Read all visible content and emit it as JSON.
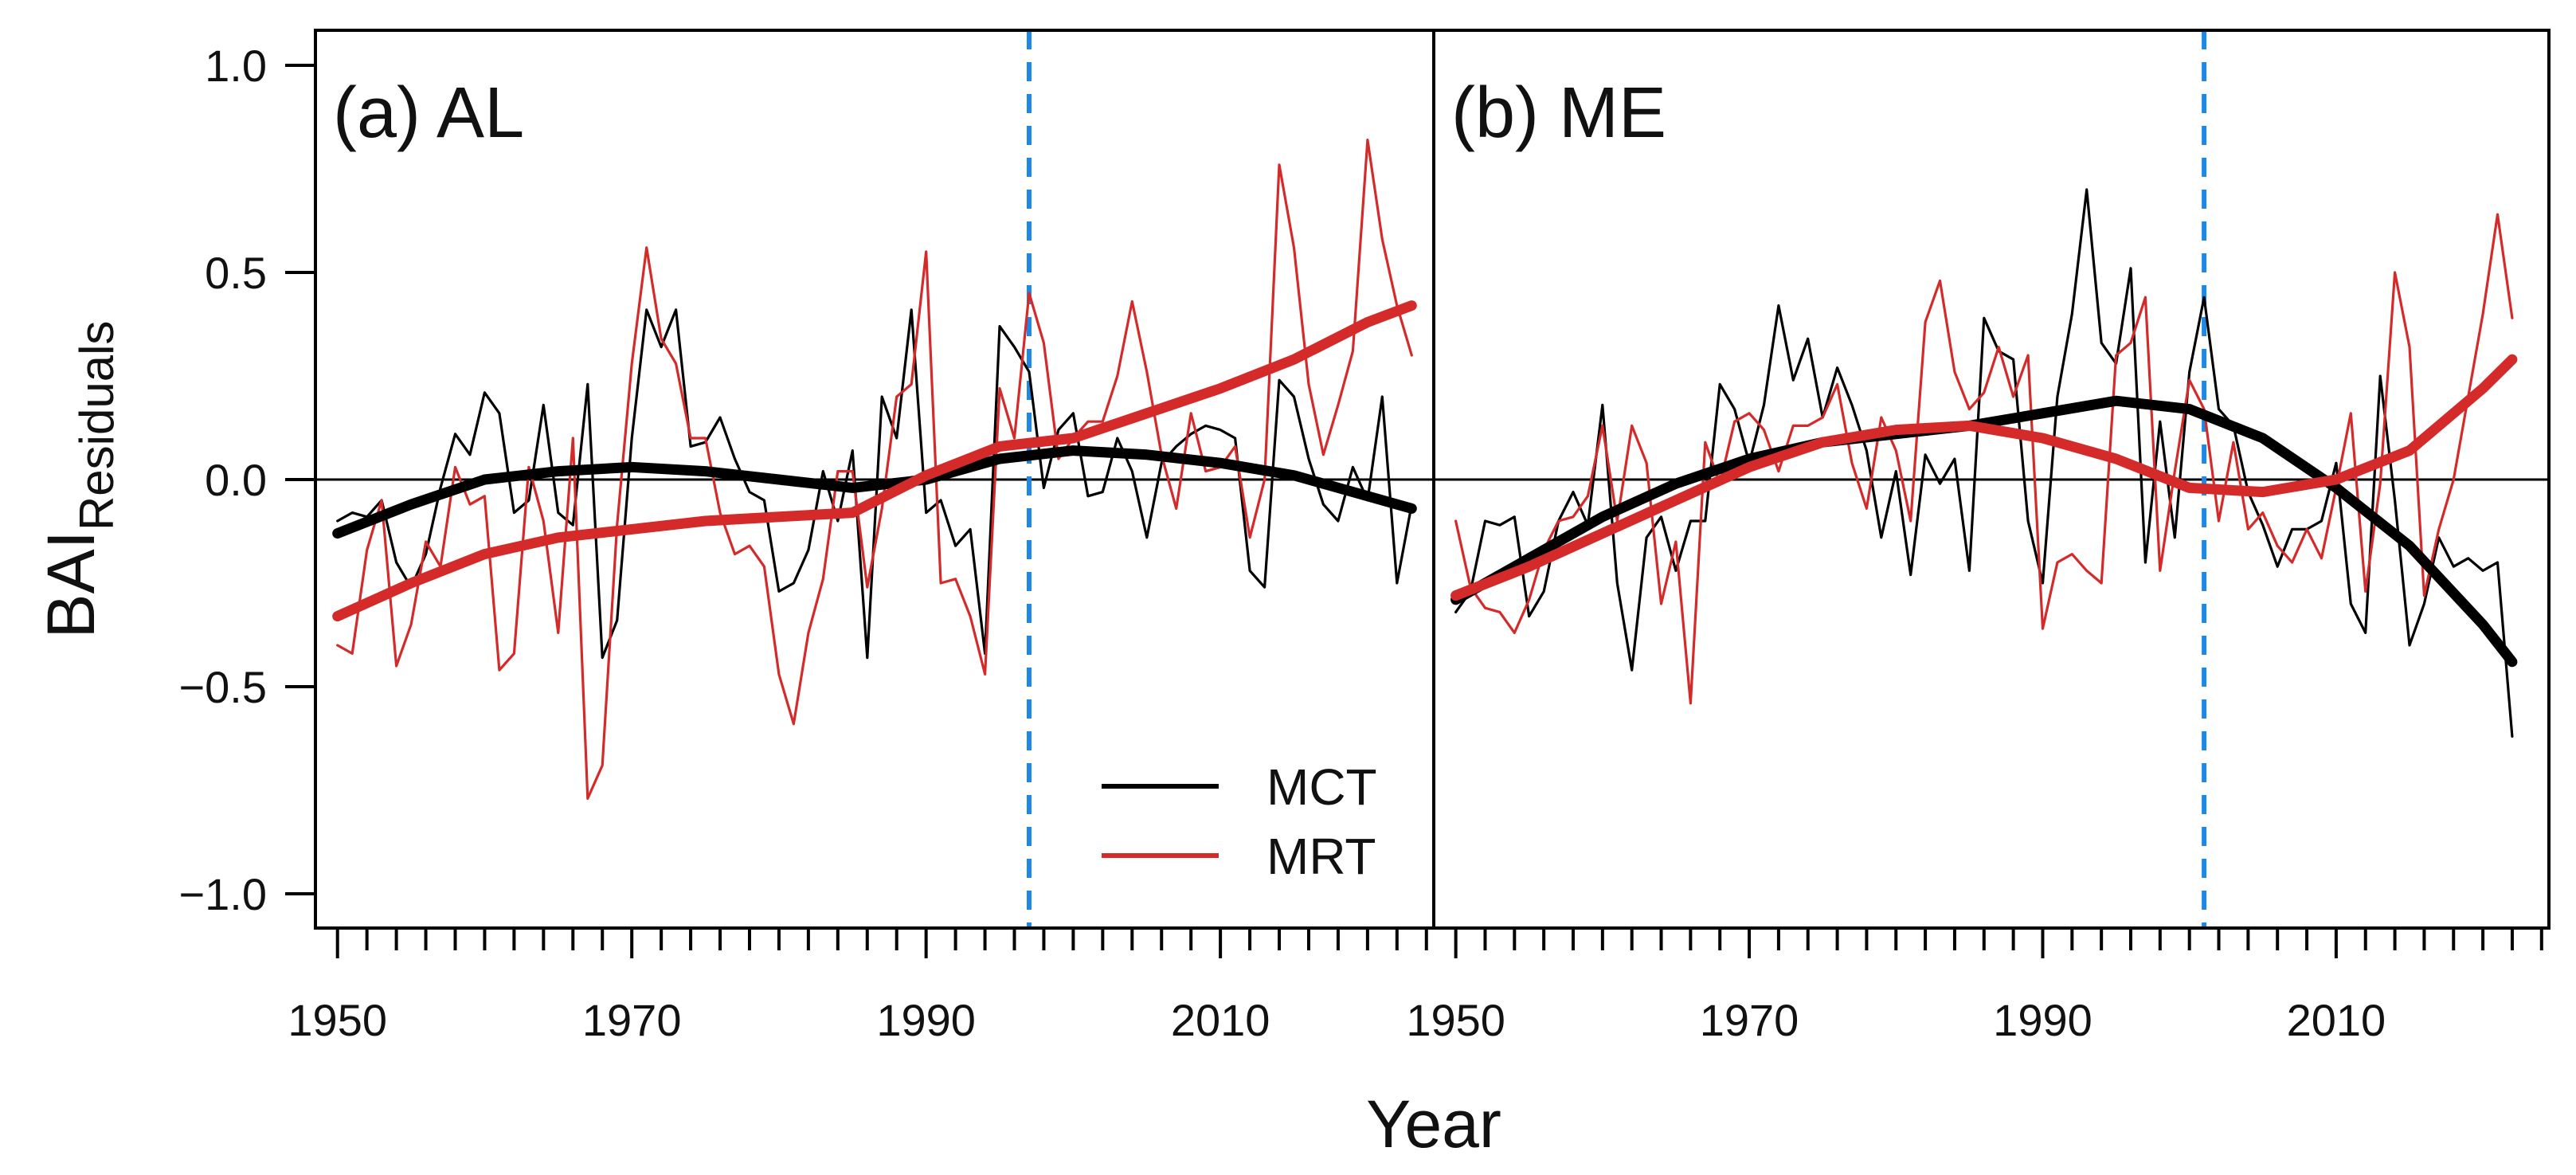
{
  "chart_data": [
    {
      "type": "line",
      "panel_title": "(a) AL",
      "xlabel": "Year",
      "ylabel": "BAI",
      "ylabel_subscript": "Residuals",
      "xlim": [
        1948.5,
        2024.5
      ],
      "ylim": [
        -1.07,
        1.07
      ],
      "x_ticks": [
        1950,
        1970,
        1990,
        2010
      ],
      "x_tick_labels": [
        "1950",
        "1970",
        "1990",
        "2010"
      ],
      "y_ticks": [
        1.0,
        0.5,
        0.0,
        -0.5,
        -1.0
      ],
      "y_tick_labels": [
        "1.0",
        "0.5",
        "0.0",
        "−0.5",
        "−1.0"
      ],
      "reference_year": 1997,
      "zero_line": true,
      "legend": [
        {
          "label": "MCT",
          "color": "#000000"
        },
        {
          "label": "MRT",
          "color": "#d42a2a"
        }
      ],
      "legend_position": "bottom-right",
      "series": [
        {
          "name": "MCT",
          "kind": "raw",
          "color": "#000000",
          "x": [
            1950,
            1951,
            1952,
            1953,
            1954,
            1955,
            1956,
            1957,
            1958,
            1959,
            1960,
            1961,
            1962,
            1963,
            1964,
            1965,
            1966,
            1967,
            1968,
            1969,
            1970,
            1971,
            1972,
            1973,
            1974,
            1975,
            1976,
            1977,
            1978,
            1979,
            1980,
            1981,
            1982,
            1983,
            1984,
            1985,
            1986,
            1987,
            1988,
            1989,
            1990,
            1991,
            1992,
            1993,
            1994,
            1995,
            1996,
            1997,
            1998,
            1999,
            2000,
            2001,
            2002,
            2003,
            2004,
            2005,
            2006,
            2007,
            2008,
            2009,
            2010,
            2011,
            2012,
            2013,
            2014,
            2015,
            2016,
            2017,
            2018,
            2019,
            2020,
            2021,
            2022,
            2023
          ],
          "values": [
            -0.1,
            -0.08,
            -0.09,
            -0.05,
            -0.2,
            -0.26,
            -0.18,
            -0.02,
            0.11,
            0.06,
            0.21,
            0.16,
            -0.08,
            -0.05,
            0.18,
            -0.08,
            -0.11,
            0.23,
            -0.43,
            -0.34,
            0.1,
            0.41,
            0.32,
            0.41,
            0.08,
            0.09,
            0.15,
            0.05,
            -0.03,
            -0.05,
            -0.27,
            -0.25,
            -0.17,
            0.02,
            -0.1,
            0.07,
            -0.43,
            0.2,
            0.1,
            0.41,
            -0.08,
            -0.05,
            -0.16,
            -0.12,
            -0.42,
            0.37,
            0.32,
            0.26,
            -0.02,
            0.12,
            0.16,
            -0.04,
            -0.03,
            0.1,
            0.02,
            -0.14,
            0.04,
            0.08,
            0.11,
            0.13,
            0.12,
            0.1,
            -0.22,
            -0.26,
            0.24,
            0.2,
            0.05,
            -0.06,
            -0.1,
            0.03,
            -0.05,
            0.2,
            -0.25,
            -0.06
          ]
        },
        {
          "name": "MRT",
          "kind": "raw",
          "color": "#d42a2a",
          "x": [
            1950,
            1951,
            1952,
            1953,
            1954,
            1955,
            1956,
            1957,
            1958,
            1959,
            1960,
            1961,
            1962,
            1963,
            1964,
            1965,
            1966,
            1967,
            1968,
            1969,
            1970,
            1971,
            1972,
            1973,
            1974,
            1975,
            1976,
            1977,
            1978,
            1979,
            1980,
            1981,
            1982,
            1983,
            1984,
            1985,
            1986,
            1987,
            1988,
            1989,
            1990,
            1991,
            1992,
            1993,
            1994,
            1995,
            1996,
            1997,
            1998,
            1999,
            2000,
            2001,
            2002,
            2003,
            2004,
            2005,
            2006,
            2007,
            2008,
            2009,
            2010,
            2011,
            2012,
            2013,
            2014,
            2015,
            2016,
            2017,
            2018,
            2019,
            2020,
            2021,
            2022,
            2023
          ],
          "values": [
            -0.4,
            -0.42,
            -0.17,
            -0.05,
            -0.45,
            -0.35,
            -0.15,
            -0.21,
            0.03,
            -0.06,
            -0.04,
            -0.46,
            -0.42,
            0.03,
            -0.1,
            -0.37,
            0.1,
            -0.77,
            -0.69,
            -0.11,
            0.28,
            0.56,
            0.34,
            0.28,
            0.1,
            0.1,
            -0.08,
            -0.18,
            -0.16,
            -0.21,
            -0.47,
            -0.59,
            -0.37,
            -0.24,
            0.02,
            0.02,
            -0.26,
            -0.07,
            0.2,
            0.23,
            0.55,
            -0.25,
            -0.24,
            -0.33,
            -0.47,
            0.22,
            0.1,
            0.45,
            0.33,
            0.05,
            0.1,
            0.14,
            0.14,
            0.25,
            0.43,
            0.26,
            0.06,
            -0.07,
            0.16,
            0.02,
            0.03,
            0.08,
            -0.14,
            0.0,
            0.76,
            0.56,
            0.23,
            0.06,
            0.18,
            0.31,
            0.82,
            0.58,
            0.42,
            0.3
          ]
        },
        {
          "name": "MCT",
          "kind": "smooth",
          "color": "#000000",
          "x": [
            1950,
            1955,
            1960,
            1965,
            1970,
            1975,
            1980,
            1985,
            1990,
            1995,
            2000,
            2005,
            2010,
            2015,
            2020,
            2023
          ],
          "values": [
            -0.13,
            -0.06,
            0.0,
            0.02,
            0.03,
            0.02,
            0.0,
            -0.02,
            0.0,
            0.05,
            0.07,
            0.06,
            0.04,
            0.01,
            -0.04,
            -0.07
          ]
        },
        {
          "name": "MRT",
          "kind": "smooth",
          "color": "#d42a2a",
          "x": [
            1950,
            1955,
            1960,
            1965,
            1970,
            1975,
            1980,
            1985,
            1990,
            1995,
            2000,
            2005,
            2010,
            2015,
            2020,
            2023
          ],
          "values": [
            -0.33,
            -0.25,
            -0.18,
            -0.14,
            -0.12,
            -0.1,
            -0.09,
            -0.08,
            0.01,
            0.08,
            0.1,
            0.16,
            0.22,
            0.29,
            0.38,
            0.42
          ]
        }
      ]
    },
    {
      "type": "line",
      "panel_title": "(b) ME",
      "xlabel": "Year",
      "xlim": [
        1948.5,
        2024.5
      ],
      "ylim": [
        -1.07,
        1.07
      ],
      "x_ticks": [
        1950,
        1970,
        1990,
        2010
      ],
      "x_tick_labels": [
        "1950",
        "1970",
        "1990",
        "2010"
      ],
      "reference_year": 2001,
      "zero_line": true,
      "series": [
        {
          "name": "MCT",
          "kind": "raw",
          "color": "#000000",
          "x": [
            1950,
            1951,
            1952,
            1953,
            1954,
            1955,
            1956,
            1957,
            1958,
            1959,
            1960,
            1961,
            1962,
            1963,
            1964,
            1965,
            1966,
            1967,
            1968,
            1969,
            1970,
            1971,
            1972,
            1973,
            1974,
            1975,
            1976,
            1977,
            1978,
            1979,
            1980,
            1981,
            1982,
            1983,
            1984,
            1985,
            1986,
            1987,
            1988,
            1989,
            1990,
            1991,
            1992,
            1993,
            1994,
            1995,
            1996,
            1997,
            1998,
            1999,
            2000,
            2001,
            2002,
            2003,
            2004,
            2005,
            2006,
            2007,
            2008,
            2009,
            2010,
            2011,
            2012,
            2013,
            2014,
            2015,
            2016,
            2017,
            2018,
            2019,
            2020,
            2021,
            2022
          ],
          "values": [
            -0.32,
            -0.27,
            -0.1,
            -0.11,
            -0.09,
            -0.33,
            -0.27,
            -0.1,
            -0.03,
            -0.11,
            0.18,
            -0.25,
            -0.46,
            -0.14,
            -0.09,
            -0.22,
            -0.1,
            -0.1,
            0.23,
            0.17,
            0.04,
            0.18,
            0.42,
            0.24,
            0.34,
            0.15,
            0.27,
            0.18,
            0.07,
            -0.14,
            0.02,
            -0.23,
            0.06,
            -0.01,
            0.05,
            -0.22,
            0.39,
            0.31,
            0.29,
            -0.1,
            -0.25,
            0.2,
            0.4,
            0.7,
            0.33,
            0.28,
            0.51,
            -0.2,
            0.14,
            -0.14,
            0.26,
            0.44,
            0.17,
            0.13,
            -0.03,
            -0.11,
            -0.21,
            -0.12,
            -0.12,
            -0.1,
            0.04,
            -0.3,
            -0.37,
            0.25,
            -0.05,
            -0.4,
            -0.3,
            -0.14,
            -0.21,
            -0.19,
            -0.22,
            -0.2,
            -0.62
          ]
        },
        {
          "name": "MRT",
          "kind": "raw",
          "color": "#d42a2a",
          "x": [
            1950,
            1951,
            1952,
            1953,
            1954,
            1955,
            1956,
            1957,
            1958,
            1959,
            1960,
            1961,
            1962,
            1963,
            1964,
            1965,
            1966,
            1967,
            1968,
            1969,
            1970,
            1971,
            1972,
            1973,
            1974,
            1975,
            1976,
            1977,
            1978,
            1979,
            1980,
            1981,
            1982,
            1983,
            1984,
            1985,
            1986,
            1987,
            1988,
            1989,
            1990,
            1991,
            1992,
            1993,
            1994,
            1995,
            1996,
            1997,
            1998,
            1999,
            2000,
            2001,
            2002,
            2003,
            2004,
            2005,
            2006,
            2007,
            2008,
            2009,
            2010,
            2011,
            2012,
            2013,
            2014,
            2015,
            2016,
            2017,
            2018,
            2019,
            2020,
            2021,
            2022
          ],
          "values": [
            -0.1,
            -0.26,
            -0.31,
            -0.32,
            -0.37,
            -0.29,
            -0.17,
            -0.1,
            -0.09,
            -0.04,
            0.13,
            -0.1,
            0.13,
            0.04,
            -0.3,
            -0.15,
            -0.54,
            0.09,
            -0.01,
            0.14,
            0.16,
            0.12,
            0.02,
            0.13,
            0.13,
            0.15,
            0.23,
            0.04,
            -0.07,
            0.15,
            0.07,
            -0.1,
            0.38,
            0.48,
            0.26,
            0.17,
            0.21,
            0.32,
            0.2,
            0.3,
            -0.36,
            -0.2,
            -0.18,
            -0.22,
            -0.25,
            0.3,
            0.33,
            0.44,
            -0.22,
            0.02,
            0.24,
            0.17,
            -0.1,
            0.09,
            -0.12,
            -0.08,
            -0.16,
            -0.2,
            -0.12,
            -0.19,
            -0.02,
            0.16,
            -0.27,
            -0.01,
            0.5,
            0.32,
            -0.28,
            -0.12,
            0.0,
            0.2,
            0.4,
            0.64,
            0.39
          ]
        },
        {
          "name": "MCT",
          "kind": "smooth",
          "color": "#000000",
          "x": [
            1950,
            1955,
            1960,
            1965,
            1970,
            1975,
            1980,
            1985,
            1990,
            1995,
            2000,
            2005,
            2010,
            2015,
            2020,
            2022
          ],
          "values": [
            -0.29,
            -0.19,
            -0.09,
            -0.01,
            0.05,
            0.09,
            0.11,
            0.13,
            0.16,
            0.19,
            0.17,
            0.1,
            -0.02,
            -0.16,
            -0.35,
            -0.44
          ]
        },
        {
          "name": "MRT",
          "kind": "smooth",
          "color": "#d42a2a",
          "x": [
            1950,
            1955,
            1960,
            1965,
            1970,
            1975,
            1980,
            1985,
            1990,
            1995,
            2000,
            2005,
            2010,
            2015,
            2020,
            2022
          ],
          "values": [
            -0.28,
            -0.21,
            -0.13,
            -0.05,
            0.03,
            0.09,
            0.12,
            0.13,
            0.1,
            0.05,
            -0.02,
            -0.03,
            0.0,
            0.07,
            0.22,
            0.29
          ]
        }
      ]
    }
  ]
}
